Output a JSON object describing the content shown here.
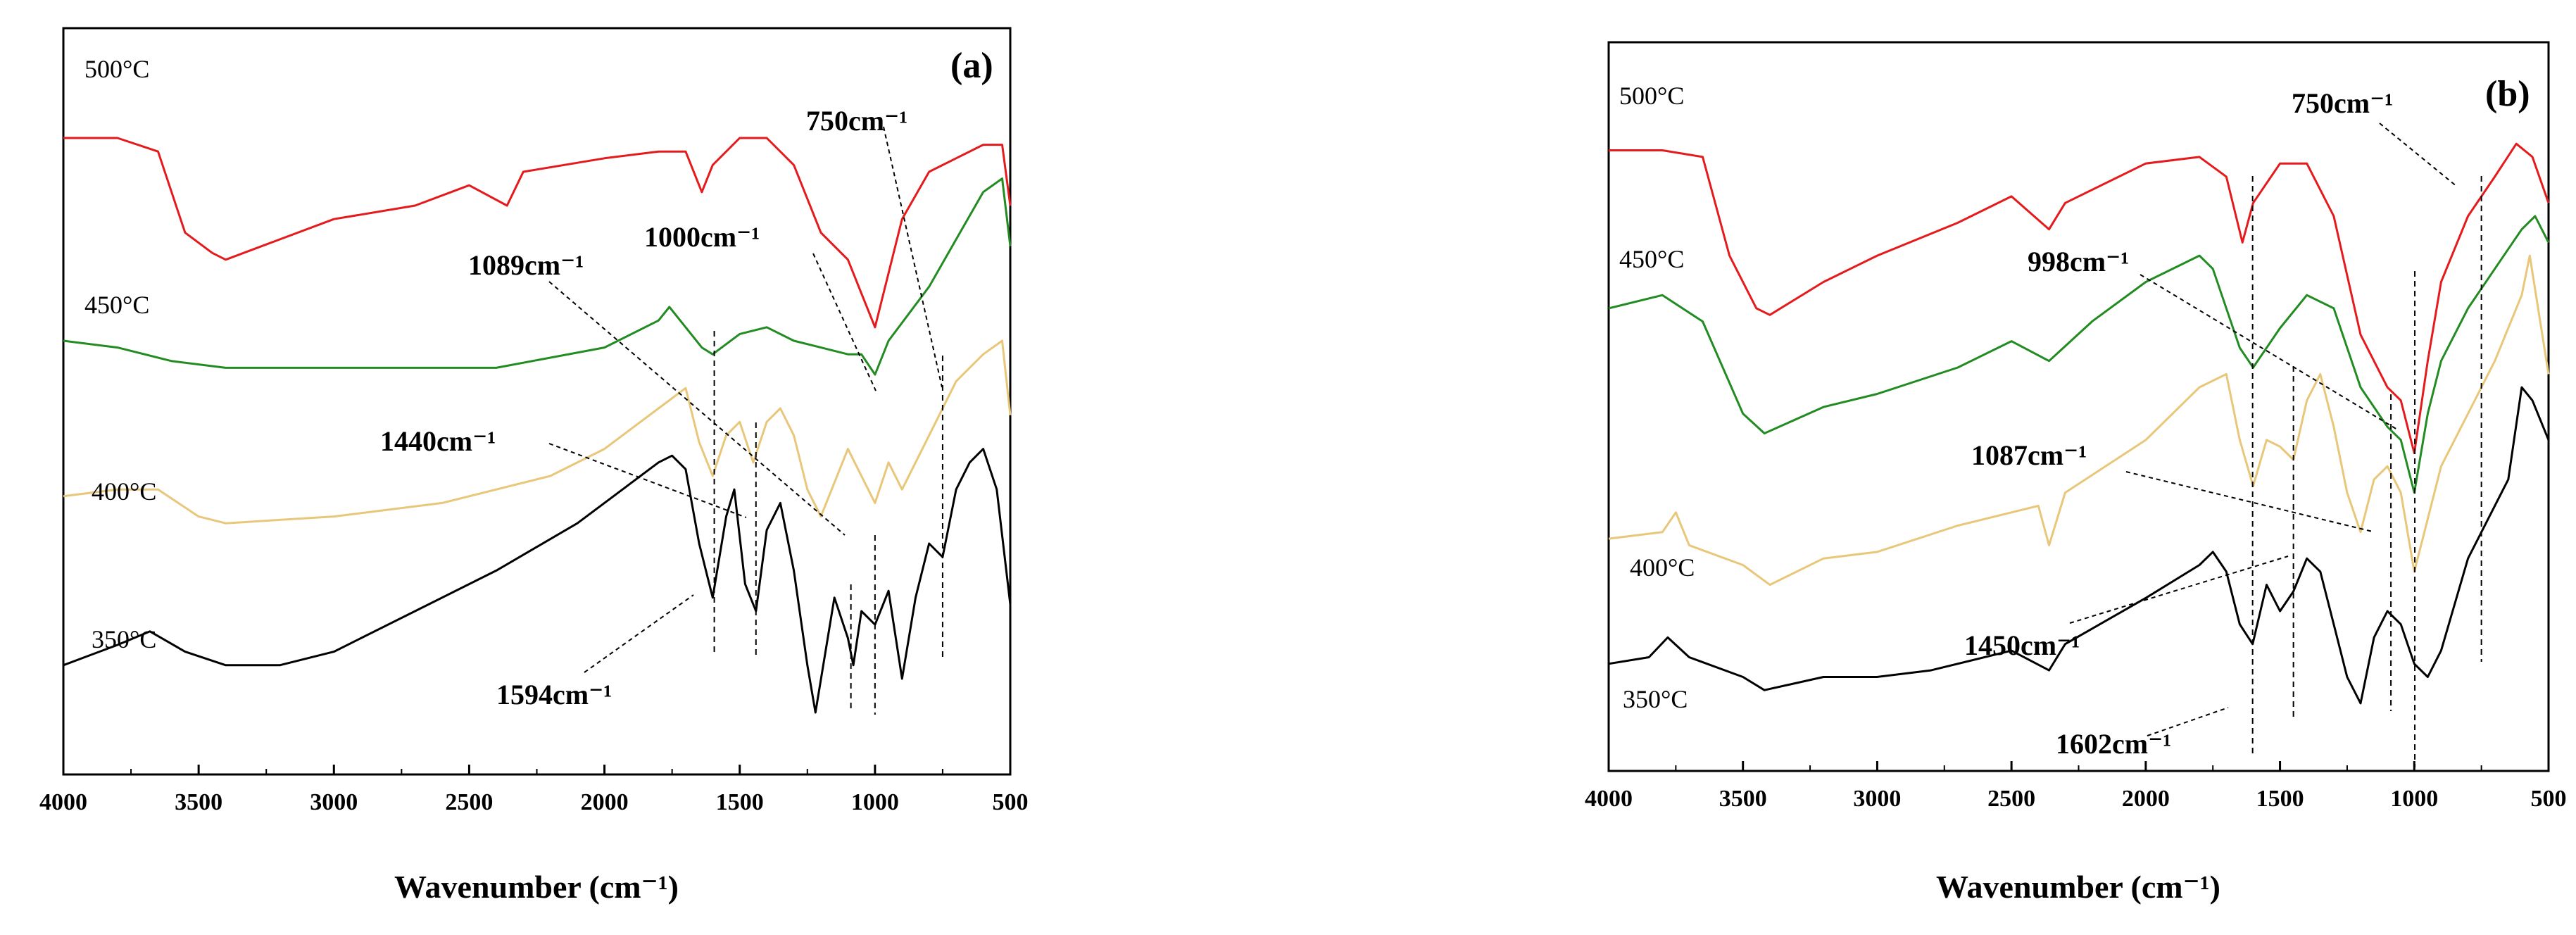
{
  "chart_data": [
    {
      "type": "line",
      "panel": "(a)",
      "xlabel": "Wavenumber (cm⁻¹)",
      "xlim": [
        4000,
        500
      ],
      "xticks": [
        4000,
        3500,
        3000,
        2500,
        2000,
        1500,
        1000,
        500
      ],
      "ylim": [
        0,
        10
      ],
      "yticks_visible": false,
      "series": [
        {
          "name": "500°C",
          "color": "#e41a1c",
          "points": [
            [
              4000,
              9.0
            ],
            [
              3800,
              9.0
            ],
            [
              3650,
              8.8
            ],
            [
              3550,
              7.6
            ],
            [
              3450,
              7.3
            ],
            [
              3400,
              7.2
            ],
            [
              3200,
              7.5
            ],
            [
              3000,
              7.8
            ],
            [
              2700,
              8.0
            ],
            [
              2500,
              8.3
            ],
            [
              2360,
              8.0
            ],
            [
              2300,
              8.5
            ],
            [
              2000,
              8.7
            ],
            [
              1800,
              8.8
            ],
            [
              1700,
              8.8
            ],
            [
              1640,
              8.2
            ],
            [
              1600,
              8.6
            ],
            [
              1500,
              9.0
            ],
            [
              1400,
              9.0
            ],
            [
              1300,
              8.6
            ],
            [
              1200,
              7.6
            ],
            [
              1100,
              7.2
            ],
            [
              1050,
              6.7
            ],
            [
              1000,
              6.2
            ],
            [
              950,
              7.0
            ],
            [
              900,
              7.8
            ],
            [
              800,
              8.5
            ],
            [
              700,
              8.7
            ],
            [
              600,
              8.9
            ],
            [
              530,
              8.9
            ],
            [
              500,
              8.0
            ]
          ]
        },
        {
          "name": "450°C",
          "color": "#228b22",
          "points": [
            [
              4000,
              6.0
            ],
            [
              3800,
              5.9
            ],
            [
              3600,
              5.7
            ],
            [
              3400,
              5.6
            ],
            [
              3000,
              5.6
            ],
            [
              2600,
              5.6
            ],
            [
              2400,
              5.6
            ],
            [
              2000,
              5.9
            ],
            [
              1800,
              6.3
            ],
            [
              1760,
              6.5
            ],
            [
              1700,
              6.2
            ],
            [
              1640,
              5.9
            ],
            [
              1600,
              5.8
            ],
            [
              1500,
              6.1
            ],
            [
              1400,
              6.2
            ],
            [
              1300,
              6.0
            ],
            [
              1200,
              5.9
            ],
            [
              1100,
              5.8
            ],
            [
              1050,
              5.8
            ],
            [
              1000,
              5.5
            ],
            [
              950,
              6.0
            ],
            [
              800,
              6.8
            ],
            [
              700,
              7.5
            ],
            [
              600,
              8.2
            ],
            [
              530,
              8.4
            ],
            [
              500,
              7.4
            ]
          ]
        },
        {
          "name": "400°C",
          "color": "#e8c77a",
          "points": [
            [
              4000,
              3.7
            ],
            [
              3800,
              3.8
            ],
            [
              3650,
              3.8
            ],
            [
              3500,
              3.4
            ],
            [
              3400,
              3.3
            ],
            [
              3000,
              3.4
            ],
            [
              2600,
              3.6
            ],
            [
              2200,
              4.0
            ],
            [
              2000,
              4.4
            ],
            [
              1800,
              5.0
            ],
            [
              1700,
              5.3
            ],
            [
              1650,
              4.5
            ],
            [
              1600,
              4.0
            ],
            [
              1550,
              4.6
            ],
            [
              1500,
              4.8
            ],
            [
              1450,
              4.2
            ],
            [
              1400,
              4.8
            ],
            [
              1350,
              5.0
            ],
            [
              1300,
              4.6
            ],
            [
              1250,
              3.8
            ],
            [
              1200,
              3.4
            ],
            [
              1100,
              4.4
            ],
            [
              1050,
              4.0
            ],
            [
              1000,
              3.6
            ],
            [
              950,
              4.2
            ],
            [
              900,
              3.8
            ],
            [
              800,
              4.6
            ],
            [
              700,
              5.4
            ],
            [
              600,
              5.8
            ],
            [
              530,
              6.0
            ],
            [
              500,
              4.9
            ]
          ]
        },
        {
          "name": "350°C",
          "color": "#000000",
          "points": [
            [
              4000,
              1.2
            ],
            [
              3800,
              1.5
            ],
            [
              3680,
              1.7
            ],
            [
              3550,
              1.4
            ],
            [
              3400,
              1.2
            ],
            [
              3200,
              1.2
            ],
            [
              3000,
              1.4
            ],
            [
              2900,
              1.6
            ],
            [
              2700,
              2.0
            ],
            [
              2400,
              2.6
            ],
            [
              2100,
              3.3
            ],
            [
              1900,
              3.9
            ],
            [
              1800,
              4.2
            ],
            [
              1750,
              4.3
            ],
            [
              1700,
              4.1
            ],
            [
              1650,
              3.0
            ],
            [
              1600,
              2.2
            ],
            [
              1550,
              3.4
            ],
            [
              1520,
              3.8
            ],
            [
              1480,
              2.4
            ],
            [
              1440,
              2.0
            ],
            [
              1400,
              3.2
            ],
            [
              1350,
              3.6
            ],
            [
              1300,
              2.6
            ],
            [
              1250,
              1.2
            ],
            [
              1220,
              0.5
            ],
            [
              1150,
              2.2
            ],
            [
              1100,
              1.6
            ],
            [
              1080,
              1.2
            ],
            [
              1050,
              2.0
            ],
            [
              1000,
              1.8
            ],
            [
              950,
              2.3
            ],
            [
              900,
              1.0
            ],
            [
              850,
              2.2
            ],
            [
              800,
              3.0
            ],
            [
              750,
              2.8
            ],
            [
              700,
              3.8
            ],
            [
              650,
              4.2
            ],
            [
              600,
              4.4
            ],
            [
              550,
              3.8
            ],
            [
              500,
              2.1
            ]
          ]
        }
      ],
      "annotations": [
        "750cm⁻¹",
        "1000cm⁻¹",
        "1089cm⁻¹",
        "1440cm⁻¹",
        "1594cm⁻¹"
      ],
      "guide_lines": [
        1594,
        1440,
        1089,
        1000,
        750
      ]
    },
    {
      "type": "line",
      "panel": "(b)",
      "xlabel": "Wavenumber (cm⁻¹)",
      "xlim": [
        4000,
        500
      ],
      "xticks": [
        4000,
        3500,
        3000,
        2500,
        2000,
        1500,
        1000,
        500
      ],
      "ylim": [
        0,
        10
      ],
      "yticks_visible": false,
      "series": [
        {
          "name": "500°C",
          "color": "#e41a1c",
          "points": [
            [
              4000,
              9.0
            ],
            [
              3800,
              9.0
            ],
            [
              3650,
              8.9
            ],
            [
              3550,
              7.4
            ],
            [
              3450,
              6.6
            ],
            [
              3400,
              6.5
            ],
            [
              3200,
              7.0
            ],
            [
              3000,
              7.4
            ],
            [
              2700,
              7.9
            ],
            [
              2500,
              8.3
            ],
            [
              2360,
              7.8
            ],
            [
              2300,
              8.2
            ],
            [
              2000,
              8.8
            ],
            [
              1800,
              8.9
            ],
            [
              1700,
              8.6
            ],
            [
              1640,
              7.6
            ],
            [
              1600,
              8.2
            ],
            [
              1500,
              8.8
            ],
            [
              1400,
              8.8
            ],
            [
              1300,
              8.0
            ],
            [
              1200,
              6.2
            ],
            [
              1100,
              5.4
            ],
            [
              1050,
              5.2
            ],
            [
              1000,
              4.4
            ],
            [
              950,
              5.8
            ],
            [
              900,
              7.0
            ],
            [
              800,
              8.0
            ],
            [
              700,
              8.6
            ],
            [
              620,
              9.1
            ],
            [
              560,
              8.9
            ],
            [
              500,
              8.2
            ]
          ]
        },
        {
          "name": "450°C",
          "color": "#228b22",
          "points": [
            [
              4000,
              6.6
            ],
            [
              3800,
              6.8
            ],
            [
              3650,
              6.4
            ],
            [
              3500,
              5.0
            ],
            [
              3420,
              4.7
            ],
            [
              3200,
              5.1
            ],
            [
              3000,
              5.3
            ],
            [
              2700,
              5.7
            ],
            [
              2500,
              6.1
            ],
            [
              2360,
              5.8
            ],
            [
              2200,
              6.4
            ],
            [
              2000,
              7.0
            ],
            [
              1800,
              7.4
            ],
            [
              1750,
              7.2
            ],
            [
              1650,
              6.0
            ],
            [
              1600,
              5.7
            ],
            [
              1500,
              6.3
            ],
            [
              1400,
              6.8
            ],
            [
              1300,
              6.6
            ],
            [
              1200,
              5.4
            ],
            [
              1100,
              4.8
            ],
            [
              1050,
              4.6
            ],
            [
              1000,
              3.8
            ],
            [
              950,
              5.0
            ],
            [
              900,
              5.8
            ],
            [
              800,
              6.6
            ],
            [
              700,
              7.2
            ],
            [
              600,
              7.8
            ],
            [
              550,
              8.0
            ],
            [
              500,
              7.6
            ]
          ]
        },
        {
          "name": "400°C",
          "color": "#e8c77a",
          "points": [
            [
              4000,
              3.1
            ],
            [
              3800,
              3.2
            ],
            [
              3750,
              3.5
            ],
            [
              3700,
              3.0
            ],
            [
              3500,
              2.7
            ],
            [
              3400,
              2.4
            ],
            [
              3200,
              2.8
            ],
            [
              3000,
              2.9
            ],
            [
              2700,
              3.3
            ],
            [
              2400,
              3.6
            ],
            [
              2360,
              3.0
            ],
            [
              2300,
              3.8
            ],
            [
              2000,
              4.6
            ],
            [
              1800,
              5.4
            ],
            [
              1700,
              5.6
            ],
            [
              1650,
              4.6
            ],
            [
              1600,
              3.9
            ],
            [
              1550,
              4.6
            ],
            [
              1500,
              4.5
            ],
            [
              1450,
              4.3
            ],
            [
              1400,
              5.2
            ],
            [
              1350,
              5.6
            ],
            [
              1300,
              4.8
            ],
            [
              1250,
              3.8
            ],
            [
              1200,
              3.2
            ],
            [
              1150,
              4.0
            ],
            [
              1100,
              4.2
            ],
            [
              1050,
              3.8
            ],
            [
              1000,
              2.6
            ],
            [
              950,
              3.4
            ],
            [
              900,
              4.2
            ],
            [
              800,
              5.0
            ],
            [
              700,
              5.8
            ],
            [
              600,
              6.8
            ],
            [
              570,
              7.4
            ],
            [
              500,
              5.6
            ]
          ]
        },
        {
          "name": "350°C",
          "color": "#000000",
          "points": [
            [
              4000,
              1.2
            ],
            [
              3850,
              1.3
            ],
            [
              3780,
              1.6
            ],
            [
              3700,
              1.3
            ],
            [
              3500,
              1.0
            ],
            [
              3420,
              0.8
            ],
            [
              3200,
              1.0
            ],
            [
              3000,
              1.0
            ],
            [
              2800,
              1.1
            ],
            [
              2500,
              1.4
            ],
            [
              2360,
              1.1
            ],
            [
              2300,
              1.5
            ],
            [
              2000,
              2.2
            ],
            [
              1800,
              2.7
            ],
            [
              1750,
              2.9
            ],
            [
              1700,
              2.6
            ],
            [
              1650,
              1.8
            ],
            [
              1602,
              1.5
            ],
            [
              1550,
              2.4
            ],
            [
              1500,
              2.0
            ],
            [
              1450,
              2.3
            ],
            [
              1400,
              2.8
            ],
            [
              1350,
              2.6
            ],
            [
              1300,
              1.8
            ],
            [
              1250,
              1.0
            ],
            [
              1200,
              0.6
            ],
            [
              1150,
              1.6
            ],
            [
              1100,
              2.0
            ],
            [
              1050,
              1.8
            ],
            [
              1000,
              1.2
            ],
            [
              950,
              1.0
            ],
            [
              900,
              1.4
            ],
            [
              800,
              2.8
            ],
            [
              700,
              3.6
            ],
            [
              650,
              4.0
            ],
            [
              600,
              5.4
            ],
            [
              560,
              5.2
            ],
            [
              500,
              4.6
            ]
          ]
        }
      ],
      "annotations": [
        "750cm⁻¹",
        "998cm⁻¹",
        "1087cm⁻¹",
        "1450cm⁻¹",
        "1602cm⁻¹"
      ],
      "guide_lines": [
        1602,
        1450,
        1087,
        998,
        750
      ]
    }
  ]
}
